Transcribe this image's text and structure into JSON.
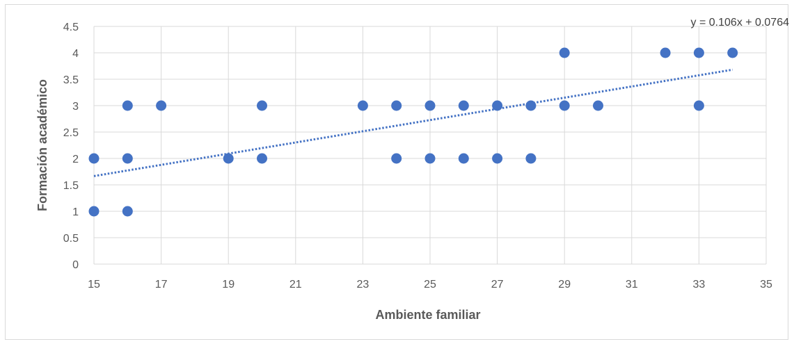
{
  "chart_data": {
    "type": "scatter",
    "title": "",
    "xlabel": "Ambiente familiar",
    "ylabel": "Formación  académico",
    "xlim": [
      15,
      35
    ],
    "ylim": [
      0,
      4.5
    ],
    "xticks": [
      "15",
      "17",
      "19",
      "21",
      "23",
      "25",
      "27",
      "29",
      "31",
      "33",
      "35"
    ],
    "yticks": [
      "0",
      "0.5",
      "1",
      "1.5",
      "2",
      "2.5",
      "3",
      "3.5",
      "4",
      "4.5"
    ],
    "grid": true,
    "legend": "none",
    "marker_color": "#4472c4",
    "trendline": {
      "type": "linear",
      "slope": 0.106,
      "intercept": 0.0764,
      "x_range": [
        15,
        34
      ],
      "style": "dotted",
      "color": "#4472c4",
      "equation_label": "y = 0.106x + 0.0764"
    },
    "series": [
      {
        "points": [
          [
            15,
            2
          ],
          [
            15,
            1
          ],
          [
            16,
            3
          ],
          [
            16,
            2
          ],
          [
            16,
            1
          ],
          [
            17,
            3
          ],
          [
            19,
            2
          ],
          [
            20,
            3
          ],
          [
            20,
            2
          ],
          [
            23,
            3
          ],
          [
            24,
            3
          ],
          [
            24,
            2
          ],
          [
            25,
            3
          ],
          [
            25,
            2
          ],
          [
            26,
            3
          ],
          [
            26,
            2
          ],
          [
            27,
            3
          ],
          [
            27,
            2
          ],
          [
            28,
            3
          ],
          [
            28,
            2
          ],
          [
            29,
            4
          ],
          [
            29,
            3
          ],
          [
            30,
            3
          ],
          [
            32,
            4
          ],
          [
            33,
            4
          ],
          [
            33,
            3
          ],
          [
            34,
            4
          ]
        ]
      }
    ]
  }
}
